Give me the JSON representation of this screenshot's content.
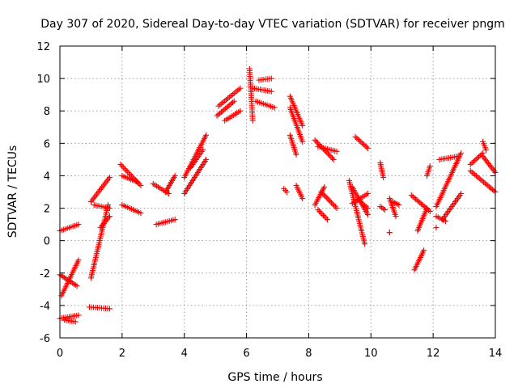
{
  "chart_data": {
    "type": "scatter",
    "title": "Day 307 of 2020, Sidereal Day-to-day VTEC variation (SDTVAR) for receiver pngm",
    "xlabel": "GPS time / hours",
    "ylabel": "SDTVAR / TECUs",
    "xlim": [
      0,
      14
    ],
    "ylim": [
      -6,
      12
    ],
    "xticks": [
      0,
      2,
      4,
      6,
      8,
      10,
      12,
      14
    ],
    "yticks": [
      -6,
      -4,
      -2,
      0,
      2,
      4,
      6,
      8,
      10,
      12
    ],
    "grid": true,
    "marker": "+",
    "color": "#ff0000",
    "segments": [
      {
        "x0": 0.0,
        "y0": 0.6,
        "x1": 0.6,
        "y1": 1.0
      },
      {
        "x0": 0.0,
        "y0": -2.1,
        "x1": 0.55,
        "y1": -2.8
      },
      {
        "x0": 0.05,
        "y0": -3.4,
        "x1": 0.6,
        "y1": -1.2
      },
      {
        "x0": 0.0,
        "y0": -4.8,
        "x1": 0.6,
        "y1": -4.6
      },
      {
        "x0": 0.15,
        "y0": -4.9,
        "x1": 0.5,
        "y1": -5.0
      },
      {
        "x0": 0.95,
        "y0": -4.1,
        "x1": 1.6,
        "y1": -4.2
      },
      {
        "x0": 1.0,
        "y0": -2.3,
        "x1": 1.55,
        "y1": 2.2
      },
      {
        "x0": 1.0,
        "y0": 2.4,
        "x1": 1.6,
        "y1": 3.9
      },
      {
        "x0": 1.1,
        "y0": 2.2,
        "x1": 1.6,
        "y1": 2.0
      },
      {
        "x0": 1.3,
        "y0": 0.8,
        "x1": 1.6,
        "y1": 1.5
      },
      {
        "x0": 1.95,
        "y0": 4.7,
        "x1": 2.6,
        "y1": 3.4
      },
      {
        "x0": 2.0,
        "y0": 2.2,
        "x1": 2.6,
        "y1": 1.7
      },
      {
        "x0": 2.0,
        "y0": 4.0,
        "x1": 2.5,
        "y1": 3.6
      },
      {
        "x0": 3.0,
        "y0": 3.5,
        "x1": 3.5,
        "y1": 2.9
      },
      {
        "x0": 3.4,
        "y0": 3.0,
        "x1": 3.7,
        "y1": 4.0
      },
      {
        "x0": 3.1,
        "y0": 1.0,
        "x1": 3.7,
        "y1": 1.3
      },
      {
        "x0": 4.0,
        "y0": 2.9,
        "x1": 4.7,
        "y1": 5.0
      },
      {
        "x0": 4.0,
        "y0": 3.9,
        "x1": 4.7,
        "y1": 6.5
      },
      {
        "x0": 4.2,
        "y0": 4.5,
        "x1": 4.6,
        "y1": 5.6
      },
      {
        "x0": 5.05,
        "y0": 7.7,
        "x1": 5.6,
        "y1": 8.6
      },
      {
        "x0": 5.1,
        "y0": 8.3,
        "x1": 5.8,
        "y1": 9.4
      },
      {
        "x0": 5.3,
        "y0": 7.4,
        "x1": 5.8,
        "y1": 8.0
      },
      {
        "x0": 6.1,
        "y0": 10.6,
        "x1": 6.2,
        "y1": 7.4
      },
      {
        "x0": 6.2,
        "y0": 9.4,
        "x1": 6.8,
        "y1": 9.2
      },
      {
        "x0": 6.3,
        "y0": 8.6,
        "x1": 6.9,
        "y1": 8.2
      },
      {
        "x0": 6.4,
        "y0": 9.9,
        "x1": 6.8,
        "y1": 10.0
      },
      {
        "x0": 7.4,
        "y0": 8.9,
        "x1": 7.8,
        "y1": 7.1
      },
      {
        "x0": 7.4,
        "y0": 8.2,
        "x1": 7.8,
        "y1": 6.1
      },
      {
        "x0": 7.4,
        "y0": 6.5,
        "x1": 7.6,
        "y1": 5.3
      },
      {
        "x0": 7.6,
        "y0": 3.4,
        "x1": 7.8,
        "y1": 2.6
      },
      {
        "x0": 7.2,
        "y0": 3.2,
        "x1": 7.3,
        "y1": 3.0
      },
      {
        "x0": 8.2,
        "y0": 6.2,
        "x1": 8.8,
        "y1": 5.0
      },
      {
        "x0": 8.3,
        "y0": 5.8,
        "x1": 8.9,
        "y1": 5.5
      },
      {
        "x0": 8.2,
        "y0": 2.2,
        "x1": 8.5,
        "y1": 3.3
      },
      {
        "x0": 8.4,
        "y0": 3.0,
        "x1": 8.9,
        "y1": 2.0
      },
      {
        "x0": 8.3,
        "y0": 1.9,
        "x1": 8.6,
        "y1": 1.3
      },
      {
        "x0": 9.3,
        "y0": 3.7,
        "x1": 9.8,
        "y1": -0.2
      },
      {
        "x0": 9.4,
        "y0": 3.3,
        "x1": 9.9,
        "y1": 1.6
      },
      {
        "x0": 9.4,
        "y0": 2.3,
        "x1": 9.9,
        "y1": 2.9
      },
      {
        "x0": 9.5,
        "y0": 6.4,
        "x1": 9.9,
        "y1": 5.7
      },
      {
        "x0": 9.6,
        "y0": 2.5,
        "x1": 9.9,
        "y1": 2.0
      },
      {
        "x0": 10.3,
        "y0": 4.8,
        "x1": 10.4,
        "y1": 3.9
      },
      {
        "x0": 10.3,
        "y0": 2.1,
        "x1": 10.45,
        "y1": 1.9
      },
      {
        "x0": 10.6,
        "y0": 2.6,
        "x1": 10.8,
        "y1": 1.5
      },
      {
        "x0": 10.7,
        "y0": 2.4,
        "x1": 10.9,
        "y1": 2.2
      },
      {
        "x0": 10.6,
        "y0": 0.5,
        "x1": 10.6,
        "y1": 0.5
      },
      {
        "x0": 11.3,
        "y0": 2.8,
        "x1": 11.9,
        "y1": 1.8
      },
      {
        "x0": 11.4,
        "y0": -1.8,
        "x1": 11.7,
        "y1": -0.6
      },
      {
        "x0": 11.5,
        "y0": 0.6,
        "x1": 11.8,
        "y1": 2.0
      },
      {
        "x0": 11.8,
        "y0": 4.0,
        "x1": 11.9,
        "y1": 4.6
      },
      {
        "x0": 12.1,
        "y0": 2.1,
        "x1": 12.9,
        "y1": 5.4
      },
      {
        "x0": 12.2,
        "y0": 5.0,
        "x1": 12.8,
        "y1": 5.2
      },
      {
        "x0": 12.1,
        "y0": 1.5,
        "x1": 12.4,
        "y1": 1.2
      },
      {
        "x0": 12.3,
        "y0": 1.3,
        "x1": 12.9,
        "y1": 2.9
      },
      {
        "x0": 12.1,
        "y0": 0.8,
        "x1": 12.1,
        "y1": 0.8
      },
      {
        "x0": 13.2,
        "y0": 4.7,
        "x1": 13.6,
        "y1": 5.4
      },
      {
        "x0": 13.2,
        "y0": 4.3,
        "x1": 14.0,
        "y1": 3.0
      },
      {
        "x0": 13.6,
        "y0": 6.1,
        "x1": 13.7,
        "y1": 5.6
      },
      {
        "x0": 13.6,
        "y0": 5.2,
        "x1": 14.0,
        "y1": 4.2
      }
    ]
  }
}
